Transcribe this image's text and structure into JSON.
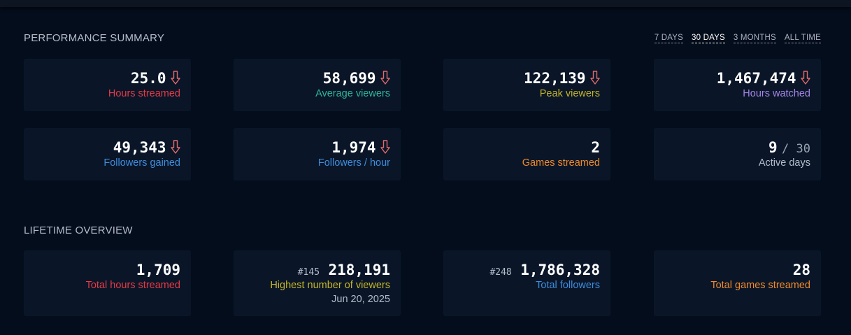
{
  "performance": {
    "title": "PERFORMANCE SUMMARY",
    "range_tabs": [
      {
        "label": "7 DAYS",
        "active": false
      },
      {
        "label": "30 DAYS",
        "active": true
      },
      {
        "label": "3 MONTHS",
        "active": false
      },
      {
        "label": "ALL TIME",
        "active": false
      }
    ],
    "stats": [
      {
        "value": "25.0",
        "label": "Hours streamed",
        "color": "#e63a47",
        "trend": "down"
      },
      {
        "value": "58,699",
        "label": "Average viewers",
        "color": "#2fb59a",
        "trend": "down"
      },
      {
        "value": "122,139",
        "label": "Peak viewers",
        "color": "#c4b42a",
        "trend": "down"
      },
      {
        "value": "1,467,474",
        "label": "Hours watched",
        "color": "#a483e6",
        "trend": "down"
      },
      {
        "value": "49,343",
        "label": "Followers gained",
        "color": "#3e8ddd",
        "trend": "down"
      },
      {
        "value": "1,974",
        "label": "Followers / hour",
        "color": "#3e8ddd",
        "trend": "down"
      },
      {
        "value": "2",
        "label": "Games streamed",
        "color": "#f08a2a",
        "trend": "none"
      },
      {
        "value": "9",
        "denominator": "/ 30",
        "label": "Active days",
        "color": "#b3bccb",
        "trend": "none"
      }
    ]
  },
  "lifetime": {
    "title": "LIFETIME OVERVIEW",
    "stats": [
      {
        "value": "1,709",
        "label": "Total hours streamed",
        "color": "#e63a47"
      },
      {
        "rank": "#145",
        "value": "218,191",
        "label": "Highest number of viewers",
        "sub": "Jun 20, 2025",
        "color": "#c4b42a"
      },
      {
        "rank": "#248",
        "value": "1,786,328",
        "label": "Total followers",
        "color": "#3e8ddd"
      },
      {
        "value": "28",
        "label": "Total games streamed",
        "color": "#f08a2a"
      }
    ]
  },
  "colors": {
    "background": "#040d1b",
    "card": "#0a1628",
    "trend_down": "#e06b6b"
  }
}
